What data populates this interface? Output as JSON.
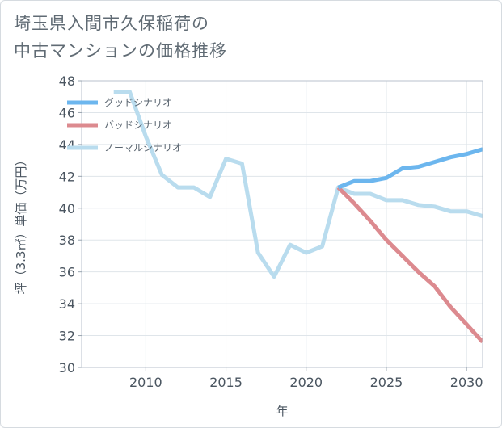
{
  "title": {
    "line1": "埼玉県入間市久保稲荷の",
    "line2": "中古マンションの価格推移"
  },
  "chart_data": {
    "type": "line",
    "xlabel": "年",
    "ylabel": "坪（3.3㎡）単価（万円）",
    "xlim": [
      2006,
      2031
    ],
    "ylim": [
      30,
      48
    ],
    "x_ticks": [
      2010,
      2015,
      2020,
      2025,
      2030
    ],
    "y_ticks": [
      30,
      32,
      34,
      36,
      38,
      40,
      42,
      44,
      46,
      48
    ],
    "grid": true,
    "legend_position": "top-left",
    "series": [
      {
        "name": "グッドシナリオ",
        "color": "#6cb6ee",
        "x": [
          2022,
          2023,
          2024,
          2025,
          2026,
          2027,
          2028,
          2029,
          2030,
          2031
        ],
        "values": [
          41.3,
          41.7,
          41.7,
          41.9,
          42.5,
          42.6,
          42.9,
          43.2,
          43.4,
          43.7
        ]
      },
      {
        "name": "バッドシナリオ",
        "color": "#dc8a8f",
        "x": [
          2022,
          2023,
          2024,
          2025,
          2026,
          2027,
          2028,
          2029,
          2030,
          2031
        ],
        "values": [
          41.3,
          40.3,
          39.2,
          38.0,
          37.0,
          36.0,
          35.1,
          33.8,
          32.7,
          31.6
        ]
      },
      {
        "name": "ノーマルシナリオ",
        "color": "#b9dcee",
        "x": [
          2008,
          2009,
          2010,
          2011,
          2012,
          2013,
          2014,
          2015,
          2016,
          2017,
          2018,
          2019,
          2020,
          2021,
          2022,
          2023,
          2024,
          2025,
          2026,
          2027,
          2028,
          2029,
          2030,
          2031
        ],
        "values": [
          47.3,
          47.3,
          44.5,
          42.1,
          41.3,
          41.3,
          40.7,
          43.1,
          42.8,
          37.2,
          35.7,
          37.7,
          37.2,
          37.6,
          41.3,
          40.9,
          40.9,
          40.5,
          40.5,
          40.2,
          40.1,
          39.8,
          39.8,
          39.5
        ]
      }
    ]
  }
}
